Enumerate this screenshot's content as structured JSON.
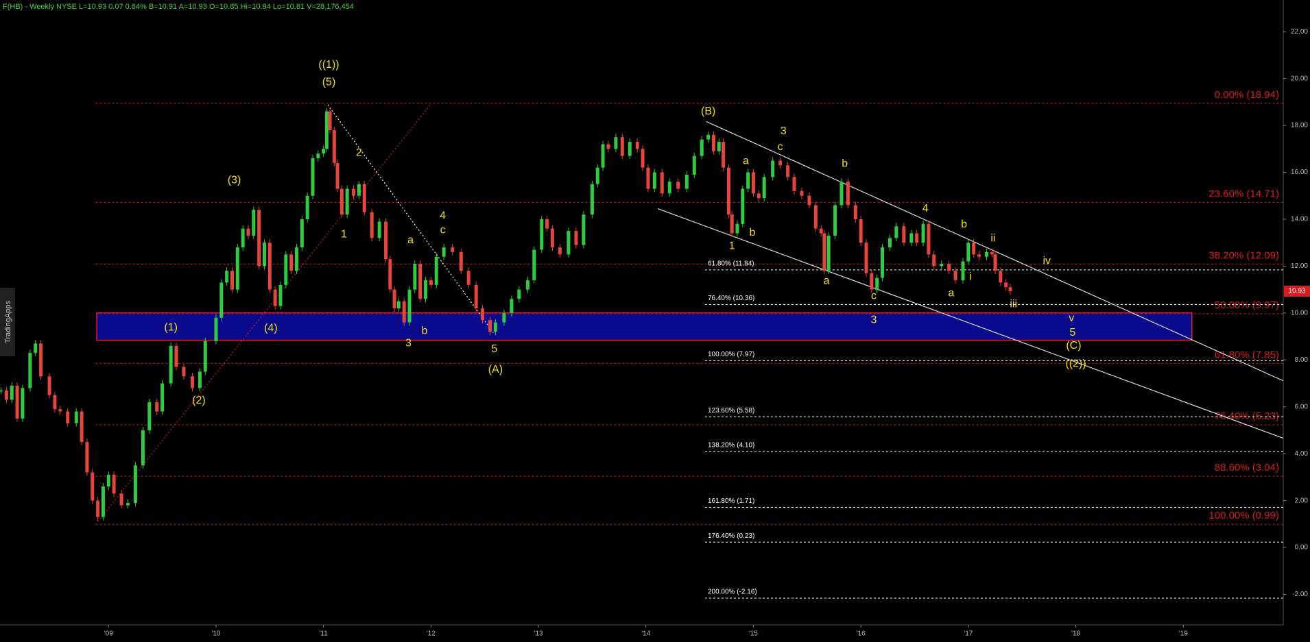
{
  "header": "F(HB) - Weekly  NYSE  L=10.93  0.07  0.64%  B=10.91  A=10.93  O=10.85  Hi=10.94  Lo=10.81  V=28,176,454",
  "watermark": "TradingApps",
  "chart_data": {
    "type": "candlestick",
    "xlim": [
      2007.99,
      2019.93
    ],
    "ylim": [
      -3.3,
      23.35
    ],
    "xticks": [
      {
        "value": 2009,
        "label": "'09"
      },
      {
        "value": 2010,
        "label": "'10"
      },
      {
        "value": 2011,
        "label": "'11"
      },
      {
        "value": 2012,
        "label": "'12"
      },
      {
        "value": 2013,
        "label": "'13"
      },
      {
        "value": 2014,
        "label": "'14"
      },
      {
        "value": 2015,
        "label": "'15"
      },
      {
        "value": 2016,
        "label": "'16"
      },
      {
        "value": 2017,
        "label": "'17"
      },
      {
        "value": 2018,
        "label": "'18"
      },
      {
        "value": 2019,
        "label": "'19"
      }
    ],
    "yticks": [
      {
        "value": -2,
        "label": "-2.00"
      },
      {
        "value": 0,
        "label": "0.00"
      },
      {
        "value": 2,
        "label": "2.00"
      },
      {
        "value": 4,
        "label": "4.00"
      },
      {
        "value": 6,
        "label": "6.00"
      },
      {
        "value": 8,
        "label": "8.00"
      },
      {
        "value": 10,
        "label": "10.00"
      },
      {
        "value": 12,
        "label": "12.00"
      },
      {
        "value": 14,
        "label": "14.00"
      },
      {
        "value": 16,
        "label": "16.00"
      },
      {
        "value": 18,
        "label": "18.00"
      },
      {
        "value": 20,
        "label": "20.00"
      },
      {
        "value": 22,
        "label": "22.00"
      }
    ],
    "last_price": 10.93,
    "up_color": "#2ecc40",
    "down_color": "#e8453c",
    "x": [
      2008.0,
      2008.05,
      2008.1,
      2008.15,
      2008.2,
      2008.27,
      2008.32,
      2008.37,
      2008.45,
      2008.5,
      2008.55,
      2008.62,
      2008.7,
      2008.75,
      2008.8,
      2008.85,
      2008.9,
      2008.95,
      2009.0,
      2009.05,
      2009.12,
      2009.18,
      2009.25,
      2009.32,
      2009.38,
      2009.45,
      2009.5,
      2009.58,
      2009.63,
      2009.7,
      2009.78,
      2009.85,
      2009.9,
      2010.0,
      2010.05,
      2010.1,
      2010.15,
      2010.2,
      2010.25,
      2010.3,
      2010.35,
      2010.4,
      2010.45,
      2010.5,
      2010.55,
      2010.6,
      2010.65,
      2010.7,
      2010.75,
      2010.8,
      2010.85,
      2010.9,
      2010.95,
      2011.0,
      2011.03,
      2011.06,
      2011.1,
      2011.13,
      2011.17,
      2011.22,
      2011.28,
      2011.33,
      2011.38,
      2011.45,
      2011.52,
      2011.58,
      2011.62,
      2011.66,
      2011.7,
      2011.75,
      2011.8,
      2011.85,
      2011.9,
      2011.95,
      2012.0,
      2012.05,
      2012.12,
      2012.2,
      2012.28,
      2012.35,
      2012.42,
      2012.48,
      2012.55,
      2012.6,
      2012.68,
      2012.75,
      2012.82,
      2012.9,
      2012.96,
      2013.03,
      2013.08,
      2013.13,
      2013.2,
      2013.28,
      2013.35,
      2013.42,
      2013.5,
      2013.55,
      2013.6,
      2013.65,
      2013.72,
      2013.78,
      2013.85,
      2013.92,
      2013.97,
      2014.02,
      2014.08,
      2014.15,
      2014.22,
      2014.3,
      2014.38,
      2014.45,
      2014.52,
      2014.58,
      2014.63,
      2014.68,
      2014.72,
      2014.77,
      2014.8,
      2014.85,
      2014.9,
      2014.95,
      2015.0,
      2015.05,
      2015.1,
      2015.18,
      2015.25,
      2015.32,
      2015.38,
      2015.45,
      2015.52,
      2015.58,
      2015.63,
      2015.66,
      2015.7,
      2015.76,
      2015.82,
      2015.88,
      2015.95,
      2016.0,
      2016.05,
      2016.1,
      2016.15,
      2016.2,
      2016.27,
      2016.33,
      2016.4,
      2016.47,
      2016.52,
      2016.58,
      2016.63,
      2016.68,
      2016.75,
      2016.82,
      2016.88,
      2016.95,
      2017.0,
      2017.05,
      2017.1,
      2017.17,
      2017.22,
      2017.25,
      2017.3,
      2017.35,
      2017.39
    ],
    "values": [
      6.7,
      6.3,
      6.9,
      5.5,
      6.8,
      8.3,
      8.7,
      7.3,
      6.5,
      5.9,
      5.8,
      5.3,
      5.8,
      4.5,
      3.2,
      2.0,
      1.3,
      2.6,
      3.1,
      2.3,
      1.8,
      1.9,
      3.5,
      5.0,
      6.2,
      5.8,
      7.0,
      8.6,
      7.7,
      7.3,
      6.8,
      7.5,
      8.8,
      9.8,
      11.3,
      11.8,
      11.0,
      12.8,
      13.6,
      13.3,
      14.4,
      12.0,
      13.0,
      11.0,
      10.3,
      11.2,
      12.5,
      11.8,
      12.8,
      14.0,
      15.0,
      16.6,
      16.8,
      17.0,
      18.6,
      17.8,
      16.4,
      15.3,
      14.2,
      15.3,
      15.0,
      15.5,
      14.3,
      13.2,
      13.9,
      12.3,
      11.0,
      10.2,
      10.5,
      9.6,
      11.0,
      12.1,
      10.6,
      11.4,
      11.2,
      12.4,
      12.8,
      12.6,
      11.8,
      11.2,
      10.2,
      9.7,
      9.2,
      9.6,
      10.0,
      10.6,
      11.0,
      11.4,
      12.7,
      14.0,
      13.6,
      12.8,
      12.5,
      13.5,
      12.9,
      14.2,
      15.5,
      16.2,
      17.2,
      17.0,
      17.5,
      16.7,
      17.3,
      17.0,
      16.2,
      15.3,
      16.0,
      15.1,
      15.6,
      15.3,
      15.9,
      16.7,
      17.4,
      17.6,
      16.9,
      17.3,
      16.2,
      14.2,
      13.4,
      13.8,
      15.3,
      16.0,
      15.1,
      14.9,
      15.8,
      16.5,
      16.3,
      15.8,
      15.2,
      15.0,
      14.6,
      13.6,
      13.4,
      11.8,
      13.3,
      14.6,
      15.6,
      14.6,
      14.0,
      13.0,
      11.7,
      11.0,
      11.5,
      12.8,
      13.2,
      13.7,
      13.0,
      13.4,
      13.0,
      13.8,
      12.5,
      12.0,
      12.1,
      11.8,
      11.4,
      12.2,
      13.0,
      12.5,
      12.4,
      12.6,
      12.5,
      11.8,
      11.3,
      11.1,
      10.93
    ],
    "fib_retracement": {
      "color": "#d81e1e",
      "x_start": 2008.88,
      "levels": [
        {
          "value": 18.94,
          "label": "0.00% (18.94)"
        },
        {
          "value": 14.71,
          "label": "23.60% (14.71)"
        },
        {
          "value": 12.09,
          "label": "38.20% (12.09)"
        },
        {
          "value": 9.97,
          "label": "50.00% (9.97)"
        },
        {
          "value": 7.85,
          "label": "61.80% (7.85)"
        },
        {
          "value": 5.23,
          "label": "76.40% (5.23)"
        },
        {
          "value": 3.04,
          "label": "88.60% (3.04)"
        },
        {
          "value": 0.99,
          "label": "100.00% (0.99)"
        }
      ]
    },
    "fib_extension": {
      "color": "#ffffff",
      "x_start": 2014.55,
      "levels": [
        {
          "value": 11.84,
          "label": "61.80% (11.84)"
        },
        {
          "value": 10.36,
          "label": "76.40% (10.36)"
        },
        {
          "value": 7.97,
          "label": "100.00% (7.97)"
        },
        {
          "value": 5.58,
          "label": "123.60% (5.58)"
        },
        {
          "value": 4.1,
          "label": "138.20% (4.10)"
        },
        {
          "value": 1.71,
          "label": "161.80% (1.71)"
        },
        {
          "value": 0.23,
          "label": "176.40% (0.23)"
        },
        {
          "value": -2.16,
          "label": "200.00% (-2.16)"
        }
      ]
    },
    "zone": {
      "x": [
        2008.89,
        2019.08
      ],
      "y": [
        8.84,
        10.01
      ],
      "color": "#0a0a8c",
      "border": "#e0202a"
    },
    "trend_lines": [
      {
        "x": [
          2014.56,
          2019.93
        ],
        "y": [
          18.17,
          7.11
        ],
        "color": "#dddddd",
        "dash": "none"
      },
      {
        "x": [
          2014.11,
          2019.93
        ],
        "y": [
          14.45,
          4.66
        ],
        "color": "#dddddd",
        "dash": "none"
      },
      {
        "x": [
          2008.9,
          2012.0
        ],
        "y": [
          1.11,
          18.91
        ],
        "color": "#d81e1e",
        "dash": "2 3"
      },
      {
        "x": [
          2011.04,
          2012.58
        ],
        "y": [
          18.88,
          9.16
        ],
        "color": "#ffffff",
        "dash": "2 3"
      }
    ],
    "wave_color": "#f5e10a",
    "waves": [
      {
        "text": "((1))",
        "x": 2011.05,
        "y": 20.58
      },
      {
        "text": "(5)",
        "x": 2011.05,
        "y": 19.84
      },
      {
        "text": "(3)",
        "x": 2010.17,
        "y": 15.65
      },
      {
        "text": "(1)",
        "x": 2009.58,
        "y": 9.38
      },
      {
        "text": "(2)",
        "x": 2009.84,
        "y": 6.26
      },
      {
        "text": "(4)",
        "x": 2010.51,
        "y": 9.34
      },
      {
        "text": "2",
        "x": 2011.33,
        "y": 16.82
      },
      {
        "text": "1",
        "x": 2011.19,
        "y": 13.35
      },
      {
        "text": "a",
        "x": 2011.81,
        "y": 13.1
      },
      {
        "text": "3",
        "x": 2011.79,
        "y": 8.7
      },
      {
        "text": "b",
        "x": 2011.94,
        "y": 9.23
      },
      {
        "text": "4",
        "x": 2012.11,
        "y": 14.13
      },
      {
        "text": "c",
        "x": 2012.11,
        "y": 13.52
      },
      {
        "text": "5",
        "x": 2012.59,
        "y": 8.45
      },
      {
        "text": "(A)",
        "x": 2012.6,
        "y": 7.57
      },
      {
        "text": "(B)",
        "x": 2014.58,
        "y": 18.6
      },
      {
        "text": "3",
        "x": 2015.28,
        "y": 17.74
      },
      {
        "text": "c",
        "x": 2015.25,
        "y": 17.07
      },
      {
        "text": "a",
        "x": 2014.93,
        "y": 16.47
      },
      {
        "text": "b",
        "x": 2014.99,
        "y": 13.42
      },
      {
        "text": "1",
        "x": 2014.8,
        "y": 12.85
      },
      {
        "text": "b",
        "x": 2015.85,
        "y": 16.36
      },
      {
        "text": "a",
        "x": 2015.68,
        "y": 11.36
      },
      {
        "text": "c",
        "x": 2016.12,
        "y": 10.72
      },
      {
        "text": "3",
        "x": 2016.12,
        "y": 9.7
      },
      {
        "text": "4",
        "x": 2016.6,
        "y": 14.45
      },
      {
        "text": "b",
        "x": 2016.96,
        "y": 13.77
      },
      {
        "text": "ii",
        "x": 2017.23,
        "y": 13.17
      },
      {
        "text": "i",
        "x": 2017.02,
        "y": 11.54
      },
      {
        "text": "a",
        "x": 2016.84,
        "y": 10.83
      },
      {
        "text": "iii",
        "x": 2017.42,
        "y": 10.37
      },
      {
        "text": "iv",
        "x": 2017.73,
        "y": 12.21
      },
      {
        "text": "v",
        "x": 2017.96,
        "y": 9.77
      },
      {
        "text": "5",
        "x": 2017.97,
        "y": 9.16
      },
      {
        "text": "(C)",
        "x": 2017.98,
        "y": 8.6
      },
      {
        "text": "((2))",
        "x": 2018.0,
        "y": 7.82
      }
    ]
  }
}
